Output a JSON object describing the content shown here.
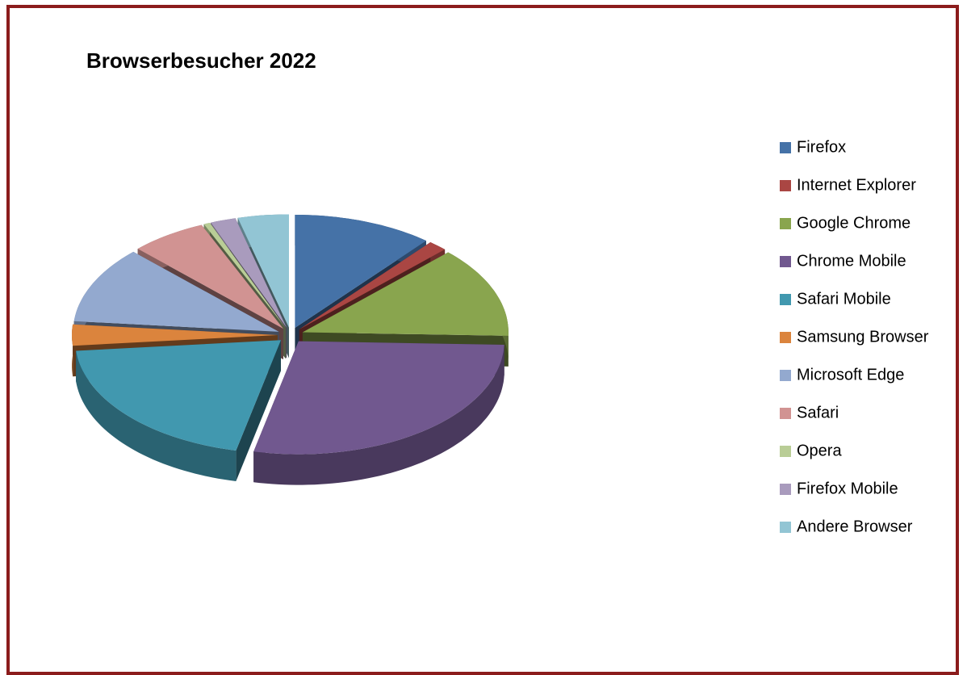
{
  "chart_data": {
    "type": "pie",
    "title": "Browserbesucher 2022",
    "categories": [
      "Firefox",
      "Internet Explorer",
      "Google Chrome",
      "Chrome Mobile",
      "Safari Mobile",
      "Samsung Browser",
      "Microsoft Edge",
      "Safari",
      "Opera",
      "Firefox Mobile",
      "Andere Browser"
    ],
    "values": [
      11,
      1.5,
      13,
      28,
      20,
      3,
      11,
      6,
      0.5,
      2,
      4
    ],
    "colors": [
      "#4572A7",
      "#AA4643",
      "#89A54E",
      "#71588F",
      "#4198AF",
      "#DB843D",
      "#93A9CF",
      "#D19392",
      "#B9CD96",
      "#A99BBD",
      "#92C5D4"
    ],
    "legend": "right"
  }
}
